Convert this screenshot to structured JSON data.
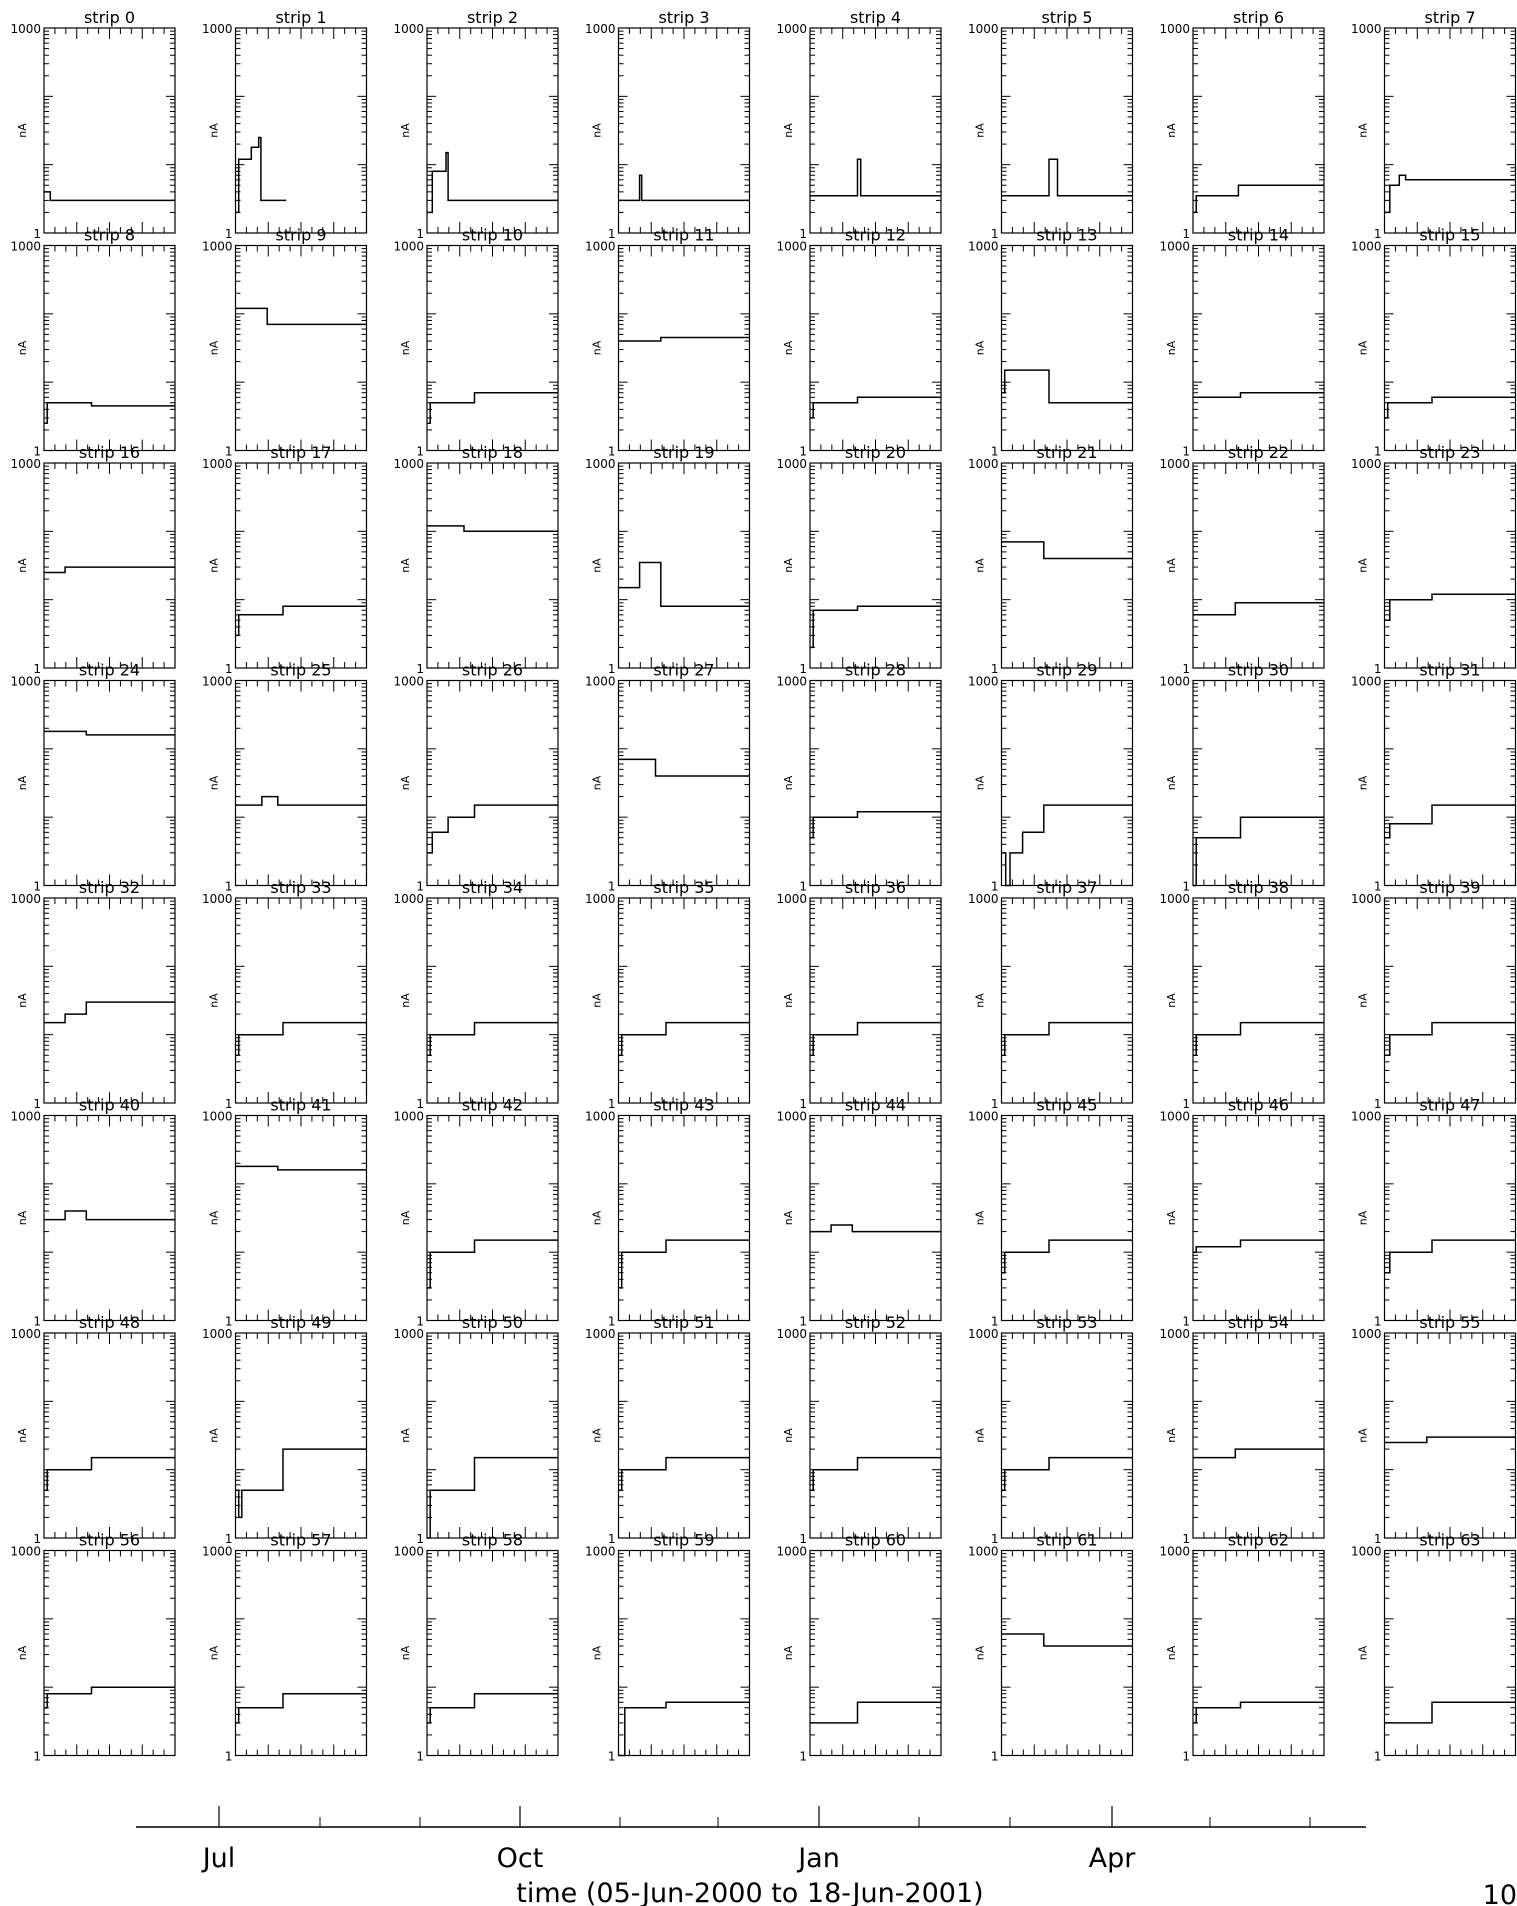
{
  "figure": {
    "x_axis_caption": "time (05-Jun-2000 to 18-Jun-2001)",
    "x_month_labels": [
      "Jul",
      "Oct",
      "Jan",
      "Apr"
    ],
    "page_number": "10",
    "y_axis_label": "nA",
    "y_tick_labels": [
      "1000",
      "1"
    ]
  },
  "chart_data": {
    "type": "line",
    "x_unit": "months since 05-Jun-2000",
    "xlim": [
      0,
      12.4
    ],
    "ylim": [
      1,
      1000
    ],
    "y_scale": "log",
    "grid": false,
    "panels": [
      {
        "title": "strip 0",
        "x": [
          0,
          0.6,
          0.6,
          12.4
        ],
        "values": [
          4,
          4,
          3,
          3
        ]
      },
      {
        "title": "strip 1",
        "x": [
          0,
          0.3,
          0.3,
          1.5,
          1.5,
          2.2,
          2.2,
          2.4,
          2.4,
          3.8,
          3.8,
          4.8
        ],
        "values": [
          2,
          2,
          12,
          12,
          18,
          18,
          25,
          25,
          3,
          3,
          3,
          3
        ]
      },
      {
        "title": "strip 2",
        "x": [
          0,
          0.5,
          0.5,
          1.8,
          1.8,
          2.0,
          2.0,
          12.4
        ],
        "values": [
          2,
          2,
          8,
          8,
          15,
          15,
          3,
          3
        ]
      },
      {
        "title": "strip 3",
        "x": [
          0,
          0.8,
          0.8,
          2.0,
          2.0,
          2.2,
          2.2,
          12.4
        ],
        "values": [
          3,
          3,
          3,
          3,
          7,
          7,
          3,
          3
        ]
      },
      {
        "title": "strip 4",
        "x": [
          0,
          4.5,
          4.5,
          4.8,
          4.8,
          12.4
        ],
        "values": [
          3.5,
          3.5,
          12,
          12,
          3.5,
          3.5
        ]
      },
      {
        "title": "strip 5",
        "x": [
          0,
          4.5,
          4.5,
          5.3,
          5.3,
          12.4
        ],
        "values": [
          3.5,
          3.5,
          12,
          12,
          3.5,
          3.5
        ]
      },
      {
        "title": "strip 6",
        "x": [
          0,
          0.3,
          0.3,
          4.3,
          4.3,
          12.4
        ],
        "values": [
          2,
          2,
          3.5,
          3.5,
          5,
          5
        ]
      },
      {
        "title": "strip 7",
        "x": [
          0,
          0.5,
          0.5,
          1.4,
          1.4,
          2.0,
          2.0,
          12.4
        ],
        "values": [
          2,
          2,
          5,
          5,
          7,
          7,
          6,
          6
        ]
      },
      {
        "title": "strip 8",
        "x": [
          0,
          0.3,
          0.3,
          4.5,
          4.5,
          12.4
        ],
        "values": [
          2.5,
          2.5,
          5,
          5,
          4.5,
          4.5
        ]
      },
      {
        "title": "strip 9",
        "x": [
          0,
          3.0,
          3.0,
          12.4
        ],
        "values": [
          120,
          120,
          70,
          70
        ]
      },
      {
        "title": "strip 10",
        "x": [
          0,
          0.3,
          0.3,
          4.5,
          4.5,
          12.4
        ],
        "values": [
          2.5,
          2.5,
          5,
          5,
          7,
          7
        ]
      },
      {
        "title": "strip 11",
        "x": [
          0,
          4.0,
          4.0,
          12.4
        ],
        "values": [
          40,
          40,
          45,
          45
        ]
      },
      {
        "title": "strip 12",
        "x": [
          0,
          0.3,
          0.3,
          4.5,
          4.5,
          12.4
        ],
        "values": [
          3,
          3,
          5,
          5,
          6,
          6
        ]
      },
      {
        "title": "strip 13",
        "x": [
          0,
          0.3,
          0.3,
          4.5,
          4.5,
          12.4
        ],
        "values": [
          7,
          7,
          15,
          15,
          5,
          5
        ]
      },
      {
        "title": "strip 14",
        "x": [
          0,
          4.5,
          4.5,
          12.4
        ],
        "values": [
          6,
          6,
          7,
          7
        ]
      },
      {
        "title": "strip 15",
        "x": [
          0,
          0.3,
          0.3,
          4.5,
          4.5,
          12.4
        ],
        "values": [
          3,
          3,
          5,
          5,
          6,
          6
        ]
      },
      {
        "title": "strip 16",
        "x": [
          0,
          2.0,
          2.0,
          12.4
        ],
        "values": [
          25,
          25,
          30,
          30
        ]
      },
      {
        "title": "strip 17",
        "x": [
          0,
          0.3,
          0.3,
          4.5,
          4.5,
          12.4
        ],
        "values": [
          3,
          3,
          6,
          6,
          8,
          8
        ]
      },
      {
        "title": "strip 18",
        "x": [
          0,
          3.5,
          3.5,
          12.4
        ],
        "values": [
          120,
          120,
          100,
          100
        ]
      },
      {
        "title": "strip 19",
        "x": [
          0,
          2.0,
          2.0,
          4.0,
          4.0,
          12.4
        ],
        "values": [
          15,
          15,
          35,
          35,
          8,
          8
        ]
      },
      {
        "title": "strip 20",
        "x": [
          0,
          0.3,
          0.3,
          4.5,
          4.5,
          12.4
        ],
        "values": [
          2,
          2,
          7,
          7,
          8,
          8
        ]
      },
      {
        "title": "strip 21",
        "x": [
          0,
          4.0,
          4.0,
          12.4
        ],
        "values": [
          70,
          70,
          40,
          40
        ]
      },
      {
        "title": "strip 22",
        "x": [
          0,
          4.0,
          4.0,
          12.4
        ],
        "values": [
          6,
          6,
          9,
          9
        ]
      },
      {
        "title": "strip 23",
        "x": [
          0,
          0.5,
          0.5,
          4.5,
          4.5,
          12.4
        ],
        "values": [
          5,
          5,
          10,
          10,
          12,
          12
        ]
      },
      {
        "title": "strip 24",
        "x": [
          0,
          4.0,
          4.0,
          12.4
        ],
        "values": [
          180,
          180,
          160,
          160
        ]
      },
      {
        "title": "strip 25",
        "x": [
          0,
          2.5,
          2.5,
          4.0,
          4.0,
          12.4
        ],
        "values": [
          15,
          15,
          20,
          20,
          15,
          15
        ]
      },
      {
        "title": "strip 26",
        "x": [
          0,
          0.5,
          0.5,
          2.0,
          2.0,
          4.5,
          4.5,
          12.4
        ],
        "values": [
          3,
          3,
          6,
          6,
          10,
          10,
          15,
          15
        ]
      },
      {
        "title": "strip 27",
        "x": [
          0,
          3.5,
          3.5,
          12.4
        ],
        "values": [
          70,
          70,
          40,
          40
        ]
      },
      {
        "title": "strip 28",
        "x": [
          0,
          0.3,
          0.3,
          4.5,
          4.5,
          12.4
        ],
        "values": [
          5,
          5,
          10,
          10,
          12,
          12
        ]
      },
      {
        "title": "strip 29",
        "x": [
          0,
          0.4,
          0.4,
          0.8,
          0.8,
          2.0,
          2.0,
          4.0,
          4.0,
          12.4
        ],
        "values": [
          3,
          3,
          1,
          1,
          3,
          3,
          6,
          6,
          15,
          15
        ]
      },
      {
        "title": "strip 30",
        "x": [
          0,
          0.3,
          0.3,
          4.5,
          4.5,
          12.4
        ],
        "values": [
          1,
          1,
          5,
          5,
          10,
          10
        ]
      },
      {
        "title": "strip 31",
        "x": [
          0,
          0.5,
          0.5,
          4.5,
          4.5,
          12.4
        ],
        "values": [
          5,
          5,
          8,
          8,
          15,
          15
        ]
      },
      {
        "title": "strip 32",
        "x": [
          0,
          2.0,
          2.0,
          4.0,
          4.0,
          12.4
        ],
        "values": [
          15,
          15,
          20,
          20,
          30,
          30
        ]
      },
      {
        "title": "strip 33",
        "x": [
          0,
          0.3,
          0.3,
          4.5,
          4.5,
          12.4
        ],
        "values": [
          5,
          5,
          10,
          10,
          15,
          15
        ]
      },
      {
        "title": "strip 34",
        "x": [
          0,
          0.3,
          0.3,
          4.5,
          4.5,
          12.4
        ],
        "values": [
          5,
          5,
          10,
          10,
          15,
          15
        ]
      },
      {
        "title": "strip 35",
        "x": [
          0,
          0.3,
          0.3,
          4.5,
          4.5,
          12.4
        ],
        "values": [
          5,
          5,
          10,
          10,
          15,
          15
        ]
      },
      {
        "title": "strip 36",
        "x": [
          0,
          0.3,
          0.3,
          4.5,
          4.5,
          12.4
        ],
        "values": [
          5,
          5,
          10,
          10,
          15,
          15
        ]
      },
      {
        "title": "strip 37",
        "x": [
          0,
          0.3,
          0.3,
          4.5,
          4.5,
          12.4
        ],
        "values": [
          5,
          5,
          10,
          10,
          15,
          15
        ]
      },
      {
        "title": "strip 38",
        "x": [
          0,
          0.3,
          0.3,
          4.5,
          4.5,
          12.4
        ],
        "values": [
          5,
          5,
          10,
          10,
          15,
          15
        ]
      },
      {
        "title": "strip 39",
        "x": [
          0,
          0.5,
          0.5,
          4.5,
          4.5,
          12.4
        ],
        "values": [
          5,
          5,
          10,
          10,
          15,
          15
        ]
      },
      {
        "title": "strip 40",
        "x": [
          0,
          2.0,
          2.0,
          4.0,
          4.0,
          12.4
        ],
        "values": [
          30,
          30,
          40,
          40,
          30,
          30
        ]
      },
      {
        "title": "strip 41",
        "x": [
          0,
          4.0,
          4.0,
          12.4
        ],
        "values": [
          180,
          180,
          160,
          160
        ]
      },
      {
        "title": "strip 42",
        "x": [
          0,
          0.3,
          0.3,
          4.5,
          4.5,
          12.4
        ],
        "values": [
          3,
          3,
          10,
          10,
          15,
          15
        ]
      },
      {
        "title": "strip 43",
        "x": [
          0,
          0.3,
          0.3,
          4.5,
          4.5,
          12.4
        ],
        "values": [
          3,
          3,
          10,
          10,
          15,
          15
        ]
      },
      {
        "title": "strip 44",
        "x": [
          0,
          2.0,
          2.0,
          4.0,
          4.0,
          12.4
        ],
        "values": [
          20,
          20,
          25,
          25,
          20,
          20
        ]
      },
      {
        "title": "strip 45",
        "x": [
          0,
          0.3,
          0.3,
          4.5,
          4.5,
          12.4
        ],
        "values": [
          5,
          5,
          10,
          10,
          15,
          15
        ]
      },
      {
        "title": "strip 46",
        "x": [
          0,
          0.3,
          0.3,
          4.5,
          4.5,
          12.4
        ],
        "values": [
          10,
          10,
          12,
          12,
          15,
          15
        ]
      },
      {
        "title": "strip 47",
        "x": [
          0,
          0.5,
          0.5,
          4.5,
          4.5,
          12.4
        ],
        "values": [
          5,
          5,
          10,
          10,
          15,
          15
        ]
      },
      {
        "title": "strip 48",
        "x": [
          0,
          0.3,
          0.3,
          4.5,
          4.5,
          12.4
        ],
        "values": [
          5,
          5,
          10,
          10,
          15,
          15
        ]
      },
      {
        "title": "strip 49",
        "x": [
          0,
          0.3,
          0.3,
          0.6,
          0.6,
          4.5,
          4.5,
          12.4
        ],
        "values": [
          5,
          5,
          2,
          2,
          5,
          5,
          20,
          20
        ]
      },
      {
        "title": "strip 50",
        "x": [
          0,
          0.3,
          0.3,
          4.5,
          4.5,
          12.4
        ],
        "values": [
          1,
          1,
          5,
          5,
          15,
          15
        ]
      },
      {
        "title": "strip 51",
        "x": [
          0,
          0.3,
          0.3,
          4.5,
          4.5,
          12.4
        ],
        "values": [
          5,
          5,
          10,
          10,
          15,
          15
        ]
      },
      {
        "title": "strip 52",
        "x": [
          0,
          0.3,
          0.3,
          4.5,
          4.5,
          12.4
        ],
        "values": [
          5,
          5,
          10,
          10,
          15,
          15
        ]
      },
      {
        "title": "strip 53",
        "x": [
          0,
          0.3,
          0.3,
          4.5,
          4.5,
          12.4
        ],
        "values": [
          5,
          5,
          10,
          10,
          15,
          15
        ]
      },
      {
        "title": "strip 54",
        "x": [
          0,
          4.0,
          4.0,
          12.4
        ],
        "values": [
          15,
          15,
          20,
          20
        ]
      },
      {
        "title": "strip 55",
        "x": [
          0,
          4.0,
          4.0,
          12.4
        ],
        "values": [
          25,
          25,
          30,
          30
        ]
      },
      {
        "title": "strip 56",
        "x": [
          0,
          0.3,
          0.3,
          4.5,
          4.5,
          12.4
        ],
        "values": [
          5,
          5,
          8,
          8,
          10,
          10
        ]
      },
      {
        "title": "strip 57",
        "x": [
          0,
          0.3,
          0.3,
          4.5,
          4.5,
          12.4
        ],
        "values": [
          3,
          3,
          5,
          5,
          8,
          8
        ]
      },
      {
        "title": "strip 58",
        "x": [
          0,
          0.3,
          0.3,
          4.5,
          4.5,
          12.4
        ],
        "values": [
          3,
          3,
          5,
          5,
          8,
          8
        ]
      },
      {
        "title": "strip 59",
        "x": [
          0,
          0.6,
          0.6,
          4.5,
          4.5,
          12.4
        ],
        "values": [
          1,
          1,
          5,
          5,
          6,
          6
        ]
      },
      {
        "title": "strip 60",
        "x": [
          0,
          4.5,
          4.5,
          12.4
        ],
        "values": [
          3,
          3,
          6,
          6
        ]
      },
      {
        "title": "strip 61",
        "x": [
          0,
          4.0,
          4.0,
          12.4
        ],
        "values": [
          60,
          60,
          40,
          40
        ]
      },
      {
        "title": "strip 62",
        "x": [
          0,
          0.3,
          0.3,
          4.5,
          4.5,
          12.4
        ],
        "values": [
          3,
          3,
          5,
          5,
          6,
          6
        ]
      },
      {
        "title": "strip 63",
        "x": [
          0,
          4.5,
          4.5,
          12.4
        ],
        "values": [
          3,
          3,
          6,
          6
        ]
      }
    ]
  }
}
